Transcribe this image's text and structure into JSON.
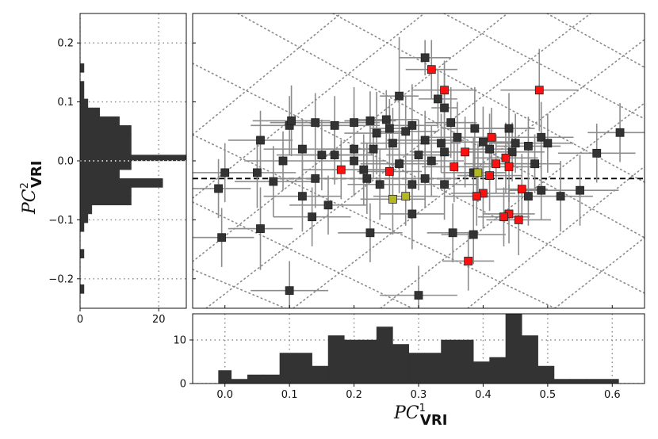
{
  "chart_data": {
    "type": "scatter",
    "xlabel": {
      "base": "PC",
      "sup": "1",
      "sub": "VRI"
    },
    "ylabel": {
      "base": "PC",
      "sup": "2",
      "sub": "VRI"
    },
    "main": {
      "xlim": [
        -0.05,
        0.65
      ],
      "ylim": [
        -0.25,
        0.25
      ],
      "reference_line_y": -0.03,
      "colors": {
        "default": "#333333",
        "highlight_red": "#ff1010",
        "highlight_yellow": "#b4b820",
        "errorbar": "#8c8c8c",
        "grid": "#8a8a8a"
      },
      "points": [
        {
          "x": 0.31,
          "y": 0.175,
          "ex": 0.04,
          "ey": 0.03,
          "c": "d"
        },
        {
          "x": 0.32,
          "y": 0.155,
          "ex": 0.04,
          "ey": 0.05,
          "c": "r"
        },
        {
          "x": 0.34,
          "y": 0.12,
          "ex": 0.05,
          "ey": 0.05,
          "c": "r"
        },
        {
          "x": 0.487,
          "y": 0.12,
          "ex": 0.06,
          "ey": 0.07,
          "c": "r"
        },
        {
          "x": 0.27,
          "y": 0.11,
          "ex": 0.03,
          "ey": 0.1,
          "c": "d"
        },
        {
          "x": 0.33,
          "y": 0.105,
          "ex": 0.03,
          "ey": 0.05,
          "c": "d"
        },
        {
          "x": 0.34,
          "y": 0.09,
          "ex": 0.02,
          "ey": 0.06,
          "c": "d"
        },
        {
          "x": 0.14,
          "y": 0.065,
          "ex": 0.07,
          "ey": 0.05,
          "c": "d"
        },
        {
          "x": 0.17,
          "y": 0.06,
          "ex": 0.07,
          "ey": 0.05,
          "c": "d"
        },
        {
          "x": 0.2,
          "y": 0.065,
          "ex": 0.04,
          "ey": 0.06,
          "c": "d"
        },
        {
          "x": 0.225,
          "y": 0.068,
          "ex": 0.04,
          "ey": 0.05,
          "c": "d"
        },
        {
          "x": 0.25,
          "y": 0.07,
          "ex": 0.05,
          "ey": 0.05,
          "c": "d"
        },
        {
          "x": 0.29,
          "y": 0.06,
          "ex": 0.04,
          "ey": 0.07,
          "c": "d"
        },
        {
          "x": 0.35,
          "y": 0.065,
          "ex": 0.04,
          "ey": 0.06,
          "c": "d"
        },
        {
          "x": 0.255,
          "y": 0.055,
          "ex": 0.03,
          "ey": 0.05,
          "c": "d"
        },
        {
          "x": 0.387,
          "y": 0.055,
          "ex": 0.05,
          "ey": 0.07,
          "c": "d"
        },
        {
          "x": 0.44,
          "y": 0.055,
          "ex": 0.04,
          "ey": 0.06,
          "c": "d"
        },
        {
          "x": 0.1,
          "y": 0.06,
          "ex": 0.06,
          "ey": 0.05,
          "c": "d"
        },
        {
          "x": 0.103,
          "y": 0.068,
          "ex": 0.06,
          "ey": 0.06,
          "c": "d"
        },
        {
          "x": 0.055,
          "y": 0.035,
          "ex": 0.05,
          "ey": 0.05,
          "c": "d"
        },
        {
          "x": 0.235,
          "y": 0.047,
          "ex": 0.05,
          "ey": 0.07,
          "c": "d"
        },
        {
          "x": 0.28,
          "y": 0.05,
          "ex": 0.05,
          "ey": 0.06,
          "c": "d"
        },
        {
          "x": 0.36,
          "y": 0.04,
          "ex": 0.05,
          "ey": 0.06,
          "c": "d"
        },
        {
          "x": 0.413,
          "y": 0.04,
          "ex": 0.04,
          "ey": 0.05,
          "c": "r"
        },
        {
          "x": 0.612,
          "y": 0.048,
          "ex": 0.05,
          "ey": 0.05,
          "c": "d"
        },
        {
          "x": 0.49,
          "y": 0.04,
          "ex": 0.05,
          "ey": 0.06,
          "c": "d"
        },
        {
          "x": 0.5,
          "y": 0.03,
          "ex": 0.04,
          "ey": 0.05,
          "c": "d"
        },
        {
          "x": 0.26,
          "y": 0.03,
          "ex": 0.05,
          "ey": 0.06,
          "c": "d"
        },
        {
          "x": 0.31,
          "y": 0.035,
          "ex": 0.06,
          "ey": 0.05,
          "c": "d"
        },
        {
          "x": 0.335,
          "y": 0.03,
          "ex": 0.03,
          "ey": 0.05,
          "c": "d"
        },
        {
          "x": 0.4,
          "y": 0.032,
          "ex": 0.05,
          "ey": 0.06,
          "c": "d"
        },
        {
          "x": 0.45,
          "y": 0.03,
          "ex": 0.04,
          "ey": 0.05,
          "c": "d"
        },
        {
          "x": 0.47,
          "y": 0.025,
          "ex": 0.05,
          "ey": 0.05,
          "c": "d"
        },
        {
          "x": 0.12,
          "y": 0.02,
          "ex": 0.06,
          "ey": 0.05,
          "c": "d"
        },
        {
          "x": 0.2,
          "y": 0.02,
          "ex": 0.05,
          "ey": 0.06,
          "c": "d"
        },
        {
          "x": 0.23,
          "y": 0.02,
          "ex": 0.04,
          "ey": 0.05,
          "c": "d"
        },
        {
          "x": 0.372,
          "y": 0.015,
          "ex": 0.05,
          "ey": 0.06,
          "c": "r"
        },
        {
          "x": 0.34,
          "y": 0.015,
          "ex": 0.05,
          "ey": 0.05,
          "c": "d"
        },
        {
          "x": 0.41,
          "y": 0.02,
          "ex": 0.04,
          "ey": 0.06,
          "c": "d"
        },
        {
          "x": 0.445,
          "y": 0.015,
          "ex": 0.05,
          "ey": 0.05,
          "c": "d"
        },
        {
          "x": 0.576,
          "y": 0.013,
          "ex": 0.06,
          "ey": 0.05,
          "c": "d"
        },
        {
          "x": 0.15,
          "y": 0.01,
          "ex": 0.07,
          "ey": 0.06,
          "c": "d"
        },
        {
          "x": 0.17,
          "y": 0.01,
          "ex": 0.06,
          "ey": 0.05,
          "c": "d"
        },
        {
          "x": 0.3,
          "y": 0.01,
          "ex": 0.05,
          "ey": 0.06,
          "c": "d"
        },
        {
          "x": 0.435,
          "y": 0.005,
          "ex": 0.05,
          "ey": 0.06,
          "c": "r"
        },
        {
          "x": 0.09,
          "y": 0.0,
          "ex": 0.06,
          "ey": 0.05,
          "c": "d"
        },
        {
          "x": 0.2,
          "y": 0.0,
          "ex": 0.05,
          "ey": 0.06,
          "c": "d"
        },
        {
          "x": 0.27,
          "y": -0.005,
          "ex": 0.06,
          "ey": 0.05,
          "c": "d"
        },
        {
          "x": 0.32,
          "y": 0.0,
          "ex": 0.05,
          "ey": 0.06,
          "c": "d"
        },
        {
          "x": 0.42,
          "y": -0.005,
          "ex": 0.05,
          "ey": 0.05,
          "c": "r"
        },
        {
          "x": 0.48,
          "y": -0.005,
          "ex": 0.04,
          "ey": 0.05,
          "c": "d"
        },
        {
          "x": 0.355,
          "y": -0.01,
          "ex": 0.05,
          "ey": 0.06,
          "c": "r"
        },
        {
          "x": 0.44,
          "y": -0.01,
          "ex": 0.05,
          "ey": 0.06,
          "c": "r"
        },
        {
          "x": 0.18,
          "y": -0.015,
          "ex": 0.06,
          "ey": 0.05,
          "c": "r"
        },
        {
          "x": 0.215,
          "y": -0.015,
          "ex": 0.05,
          "ey": 0.06,
          "c": "d"
        },
        {
          "x": 0.255,
          "y": -0.018,
          "ex": 0.05,
          "ey": 0.05,
          "c": "r"
        },
        {
          "x": 0.385,
          "y": -0.02,
          "ex": 0.05,
          "ey": 0.06,
          "c": "d"
        },
        {
          "x": 0.392,
          "y": -0.02,
          "ex": 0.04,
          "ey": 0.05,
          "c": "y"
        },
        {
          "x": 0.0,
          "y": -0.02,
          "ex": 0.05,
          "ey": 0.05,
          "c": "d"
        },
        {
          "x": 0.05,
          "y": -0.02,
          "ex": 0.06,
          "ey": 0.06,
          "c": "d"
        },
        {
          "x": 0.41,
          "y": -0.025,
          "ex": 0.05,
          "ey": 0.06,
          "c": "r"
        },
        {
          "x": 0.14,
          "y": -0.03,
          "ex": 0.07,
          "ey": 0.05,
          "c": "d"
        },
        {
          "x": 0.22,
          "y": -0.03,
          "ex": 0.05,
          "ey": 0.06,
          "c": "d"
        },
        {
          "x": 0.31,
          "y": -0.03,
          "ex": 0.05,
          "ey": 0.05,
          "c": "d"
        },
        {
          "x": 0.075,
          "y": -0.035,
          "ex": 0.06,
          "ey": 0.06,
          "c": "d"
        },
        {
          "x": 0.24,
          "y": -0.04,
          "ex": 0.05,
          "ey": 0.06,
          "c": "d"
        },
        {
          "x": 0.29,
          "y": -0.04,
          "ex": 0.06,
          "ey": 0.05,
          "c": "d"
        },
        {
          "x": 0.34,
          "y": -0.04,
          "ex": 0.05,
          "ey": 0.06,
          "c": "d"
        },
        {
          "x": -0.01,
          "y": -0.047,
          "ex": 0.05,
          "ey": 0.05,
          "c": "d"
        },
        {
          "x": 0.46,
          "y": -0.048,
          "ex": 0.04,
          "ey": 0.06,
          "c": "r"
        },
        {
          "x": 0.49,
          "y": -0.05,
          "ex": 0.05,
          "ey": 0.05,
          "c": "d"
        },
        {
          "x": 0.55,
          "y": -0.05,
          "ex": 0.06,
          "ey": 0.06,
          "c": "d"
        },
        {
          "x": 0.4,
          "y": -0.055,
          "ex": 0.05,
          "ey": 0.06,
          "c": "r"
        },
        {
          "x": 0.39,
          "y": -0.06,
          "ex": 0.05,
          "ey": 0.05,
          "c": "r"
        },
        {
          "x": 0.12,
          "y": -0.06,
          "ex": 0.06,
          "ey": 0.06,
          "c": "d"
        },
        {
          "x": 0.28,
          "y": -0.06,
          "ex": 0.05,
          "ey": 0.05,
          "c": "y"
        },
        {
          "x": 0.26,
          "y": -0.065,
          "ex": 0.05,
          "ey": 0.06,
          "c": "y"
        },
        {
          "x": 0.47,
          "y": -0.06,
          "ex": 0.05,
          "ey": 0.05,
          "c": "d"
        },
        {
          "x": 0.52,
          "y": -0.06,
          "ex": 0.05,
          "ey": 0.06,
          "c": "d"
        },
        {
          "x": 0.16,
          "y": -0.075,
          "ex": 0.06,
          "ey": 0.05,
          "c": "d"
        },
        {
          "x": 0.29,
          "y": -0.09,
          "ex": 0.05,
          "ey": 0.06,
          "c": "d"
        },
        {
          "x": 0.44,
          "y": -0.09,
          "ex": 0.04,
          "ey": 0.05,
          "c": "r"
        },
        {
          "x": 0.432,
          "y": -0.095,
          "ex": 0.04,
          "ey": 0.05,
          "c": "r"
        },
        {
          "x": 0.455,
          "y": -0.1,
          "ex": 0.05,
          "ey": 0.06,
          "c": "r"
        },
        {
          "x": 0.135,
          "y": -0.095,
          "ex": 0.06,
          "ey": 0.05,
          "c": "d"
        },
        {
          "x": 0.055,
          "y": -0.115,
          "ex": 0.05,
          "ey": 0.07,
          "c": "d"
        },
        {
          "x": -0.005,
          "y": -0.13,
          "ex": 0.05,
          "ey": 0.05,
          "c": "d"
        },
        {
          "x": 0.225,
          "y": -0.122,
          "ex": 0.05,
          "ey": 0.05,
          "c": "d"
        },
        {
          "x": 0.353,
          "y": -0.122,
          "ex": 0.04,
          "ey": 0.05,
          "c": "d"
        },
        {
          "x": 0.385,
          "y": -0.125,
          "ex": 0.05,
          "ey": 0.05,
          "c": "d"
        },
        {
          "x": 0.377,
          "y": -0.17,
          "ex": 0.04,
          "ey": 0.05,
          "c": "r"
        },
        {
          "x": 0.1,
          "y": -0.22,
          "ex": 0.06,
          "ey": 0.05,
          "c": "d"
        },
        {
          "x": 0.3,
          "y": -0.228,
          "ex": 0.06,
          "ey": 0.05,
          "c": "d"
        }
      ]
    },
    "top_hist": {
      "xlim": [
        -0.05,
        0.65
      ],
      "ylim": [
        0,
        16
      ],
      "yticks": [
        0,
        10
      ],
      "xticks": [
        "0.0",
        "0.1",
        "0.2",
        "0.3",
        "0.4",
        "0.5",
        "0.6"
      ],
      "bin_edges": [
        -0.01,
        0.01,
        0.035,
        0.06,
        0.085,
        0.11,
        0.135,
        0.16,
        0.185,
        0.21,
        0.235,
        0.26,
        0.285,
        0.31,
        0.335,
        0.36,
        0.385,
        0.41,
        0.435,
        0.46,
        0.485,
        0.51,
        0.535,
        0.56,
        0.585,
        0.61
      ],
      "counts": [
        3,
        1,
        2,
        2,
        7,
        7,
        4,
        11,
        10,
        10,
        13,
        9,
        7,
        7,
        10,
        10,
        5,
        6,
        16,
        11,
        4,
        1,
        1,
        1,
        1
      ]
    },
    "side_hist": {
      "ylim": [
        -0.25,
        0.25
      ],
      "xlim": [
        0,
        27
      ],
      "xticks": [
        "0",
        "20"
      ],
      "yticks": [
        "−0.2",
        "−0.1",
        "0.0",
        "0.1",
        "0.2"
      ],
      "bin_edges": [
        -0.225,
        -0.21,
        -0.195,
        -0.18,
        -0.165,
        -0.15,
        -0.135,
        -0.12,
        -0.105,
        -0.09,
        -0.075,
        -0.06,
        -0.045,
        -0.03,
        -0.015,
        0.0,
        0.01,
        0.02,
        0.03,
        0.045,
        0.06,
        0.075,
        0.09,
        0.105,
        0.12,
        0.135,
        0.15,
        0.165
      ],
      "counts": [
        1,
        0,
        0,
        0,
        1,
        0,
        0,
        1,
        2,
        3,
        13,
        13,
        21,
        10,
        13,
        27,
        13,
        13,
        13,
        13,
        10,
        5,
        2,
        1,
        1,
        0,
        1
      ]
    }
  }
}
